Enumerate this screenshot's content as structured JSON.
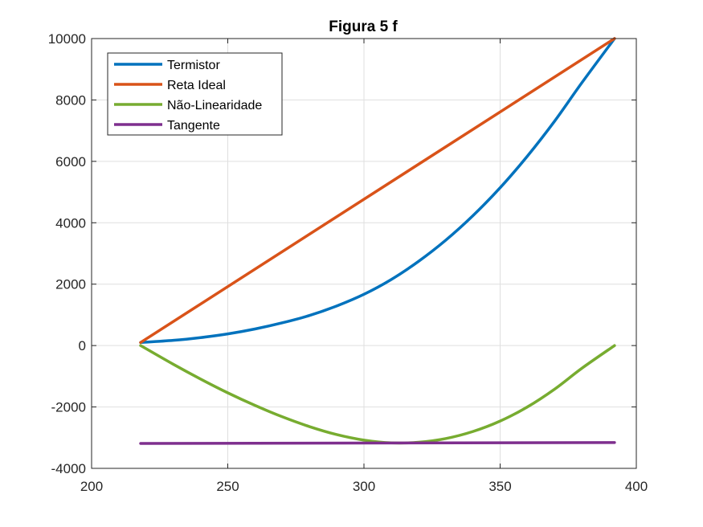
{
  "chart_data": {
    "type": "line",
    "title": "Figura 5 f",
    "xlabel": "",
    "ylabel": "",
    "xlim": [
      200,
      400
    ],
    "ylim": [
      -4000,
      10000
    ],
    "x_ticks": [
      200,
      250,
      300,
      350,
      400
    ],
    "y_ticks": [
      -4000,
      -2000,
      0,
      2000,
      4000,
      6000,
      8000,
      10000
    ],
    "grid": true,
    "legend_position": "top-left",
    "series": [
      {
        "name": "Termistor",
        "color": "#0072BD",
        "x": [
          218,
          230,
          240,
          250,
          260,
          270,
          280,
          290,
          300,
          310,
          320,
          330,
          340,
          350,
          360,
          370,
          380,
          392
        ],
        "y": [
          100,
          170,
          260,
          380,
          540,
          740,
          980,
          1290,
          1670,
          2150,
          2740,
          3430,
          4230,
          5140,
          6170,
          7310,
          8560,
          10000
        ]
      },
      {
        "name": "Reta Ideal",
        "color": "#D95319",
        "x": [
          218,
          392
        ],
        "y": [
          100,
          10000
        ]
      },
      {
        "name": "Não-Linearidade",
        "color": "#77AC30",
        "x": [
          218,
          230,
          240,
          250,
          260,
          270,
          280,
          290,
          300,
          310,
          320,
          330,
          340,
          350,
          360,
          370,
          380,
          392
        ],
        "y": [
          0,
          -610,
          -1090,
          -1540,
          -1950,
          -2320,
          -2640,
          -2900,
          -3080,
          -3170,
          -3150,
          -3030,
          -2800,
          -2460,
          -2000,
          -1420,
          -740,
          0
        ]
      },
      {
        "name": "Tangente",
        "color": "#7E2F8E",
        "x": [
          218,
          392
        ],
        "y": [
          -3190,
          -3160
        ]
      }
    ]
  }
}
